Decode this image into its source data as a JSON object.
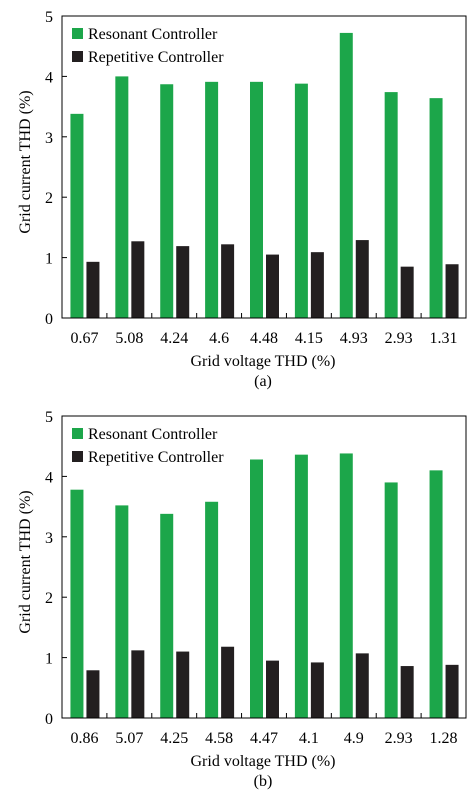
{
  "chart_data": [
    {
      "type": "bar",
      "panel_label": "(a)",
      "xlabel": "Grid voltage THD (%)",
      "ylabel": "Grid current THD (%)",
      "ylim": [
        0,
        5
      ],
      "yticks": [
        "0",
        "1",
        "2",
        "3",
        "4",
        "5"
      ],
      "categories": [
        "0.67",
        "5.08",
        "4.24",
        "4.6",
        "4.48",
        "4.15",
        "4.93",
        "2.93",
        "1.31"
      ],
      "series": [
        {
          "name": "Resonant Controller",
          "color": "#1ca64a",
          "values": [
            3.38,
            4.0,
            3.87,
            3.91,
            3.91,
            3.88,
            4.72,
            3.74,
            3.64
          ]
        },
        {
          "name": "Repetitive Controller",
          "color": "#231f20",
          "values": [
            0.93,
            1.27,
            1.19,
            1.22,
            1.05,
            1.09,
            1.29,
            0.85,
            0.89
          ]
        }
      ],
      "legend": "top-left",
      "grid": false
    },
    {
      "type": "bar",
      "panel_label": "(b)",
      "xlabel": "Grid voltage THD (%)",
      "ylabel": "Grid current THD (%)",
      "ylim": [
        0,
        5
      ],
      "yticks": [
        "0",
        "1",
        "2",
        "3",
        "4",
        "5"
      ],
      "categories": [
        "0.86",
        "5.07",
        "4.25",
        "4.58",
        "4.47",
        "4.1",
        "4.9",
        "2.93",
        "1.28"
      ],
      "series": [
        {
          "name": "Resonant Controller",
          "color": "#1ca64a",
          "values": [
            3.78,
            3.52,
            3.38,
            3.58,
            4.28,
            4.36,
            4.38,
            3.9,
            4.1
          ]
        },
        {
          "name": "Repetitive Controller",
          "color": "#231f20",
          "values": [
            0.79,
            1.12,
            1.1,
            1.18,
            0.95,
            0.92,
            1.07,
            0.86,
            0.88
          ]
        }
      ],
      "legend": "top-left",
      "grid": false
    }
  ]
}
